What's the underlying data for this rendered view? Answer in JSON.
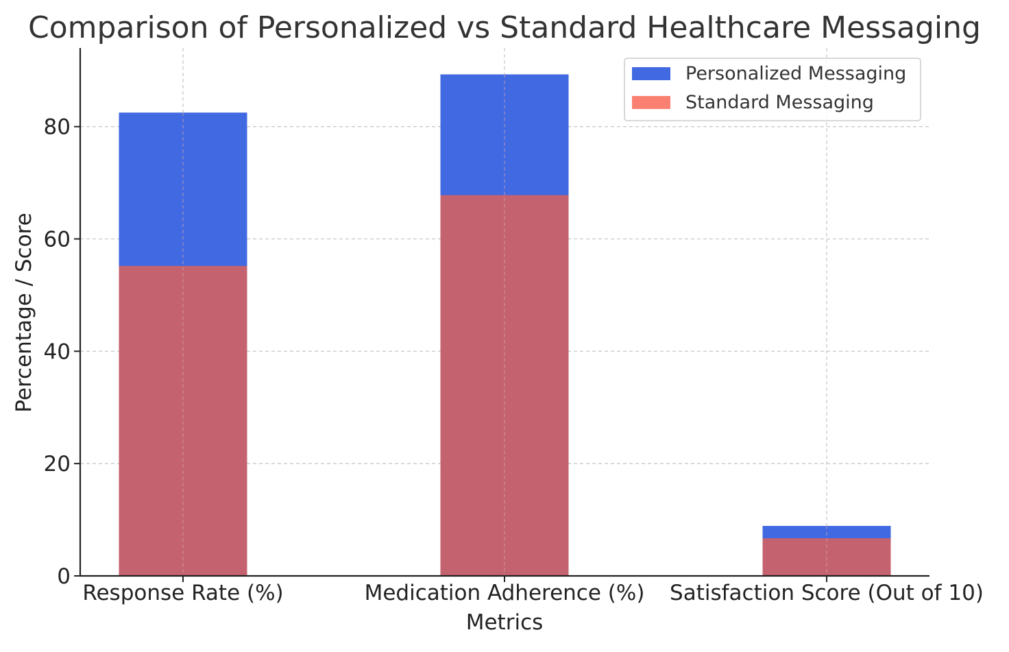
{
  "chart_data": {
    "type": "bar",
    "title": "Comparison of Personalized vs Standard Healthcare Messaging",
    "xlabel": "Metrics",
    "ylabel": "Percentage / Score",
    "categories": [
      "Response Rate (%)",
      "Medication Adherence (%)",
      "Satisfaction Score (Out of 10)"
    ],
    "series": [
      {
        "name": "Personalized Messaging",
        "values": [
          82.5,
          89.3,
          8.9
        ],
        "color": "#4169e1"
      },
      {
        "name": "Standard Messaging",
        "values": [
          55.2,
          67.8,
          6.7
        ],
        "color": "#fa8072"
      }
    ],
    "overlap_color": "#c4636f",
    "ylim": [
      0,
      94
    ],
    "yticks": [
      0,
      20,
      40,
      60,
      80
    ],
    "grid": true,
    "legend_position": "top-right"
  }
}
